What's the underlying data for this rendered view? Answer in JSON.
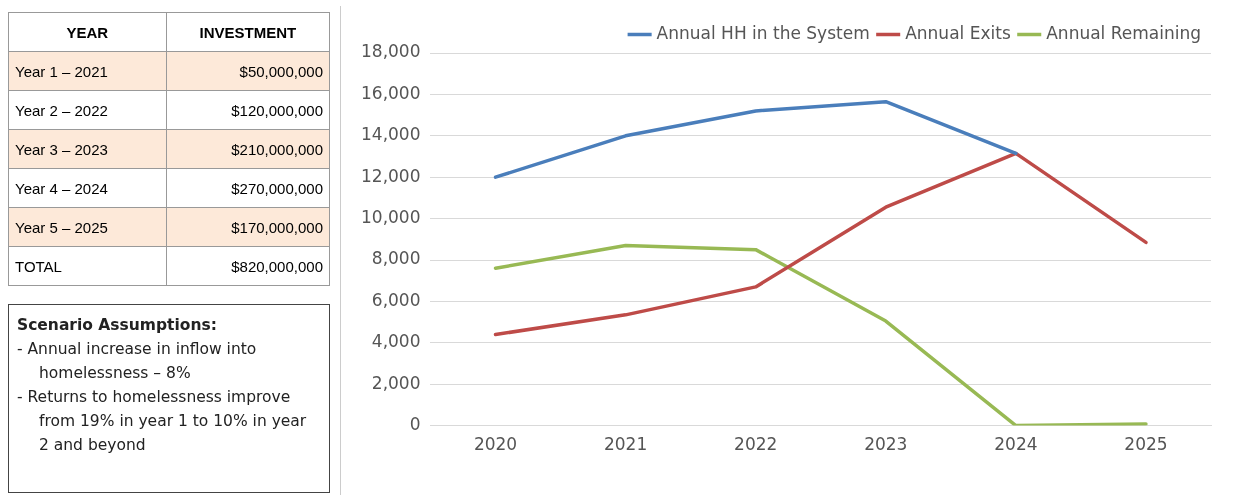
{
  "chart_data": [
    {
      "type": "other",
      "xlabel": "YEAR",
      "ylabel": "INVESTMENT",
      "categories": [
        "Year 1 – 2021",
        "Year 2 – 2022",
        "Year 3 – 2023",
        "Year 4 – 2024",
        "Year 5 – 2025",
        "TOTAL"
      ],
      "value_labels": [
        "$50,000,000",
        "$120,000,000",
        "$210,000,000",
        "$270,000,000",
        "$170,000,000",
        "$820,000,000"
      ],
      "colors": [
        "#fde9d9",
        "#ffffff",
        "#fde9d9",
        "#ffffff",
        "#fde9d9",
        "#ffffff"
      ]
    },
    {
      "type": "other",
      "title": "Scenario Assumptions:",
      "annotations": [
        "- Annual increase in inflow into homelessness – 8%",
        "- Returns to homelessness improve from 19% in year 1 to 10% in year 2 and beyond"
      ]
    },
    {
      "type": "line",
      "categories": [
        "2020",
        "2021",
        "2022",
        "2023",
        "2024",
        "2025"
      ],
      "series": [
        {
          "name": "Annual HH in the System",
          "color": "#4a7ebb",
          "values": [
            12000,
            14000,
            15200,
            15650,
            13150,
            null
          ]
        },
        {
          "name": "Annual Exits",
          "color": "#be4b48",
          "values": [
            4400,
            5350,
            6700,
            10550,
            13150,
            8850
          ]
        },
        {
          "name": "Annual Remaining",
          "color": "#98b954",
          "values": [
            7600,
            8700,
            8500,
            5050,
            0,
            80
          ]
        }
      ],
      "ylim": [
        0,
        18000
      ],
      "yticks": [
        {
          "value": 0,
          "label": "0"
        },
        {
          "value": 2000,
          "label": "2,000"
        },
        {
          "value": 4000,
          "label": "4,000"
        },
        {
          "value": 6000,
          "label": "6,000"
        },
        {
          "value": 8000,
          "label": "8,000"
        },
        {
          "value": 10000,
          "label": "10,000"
        },
        {
          "value": 12000,
          "label": "12,000"
        },
        {
          "value": 14000,
          "label": "14,000"
        },
        {
          "value": 16000,
          "label": "16,000"
        },
        {
          "value": 18000,
          "label": "18,000"
        }
      ],
      "grid": "y",
      "legend": "top",
      "marker": "none",
      "line_style": "solid"
    }
  ]
}
